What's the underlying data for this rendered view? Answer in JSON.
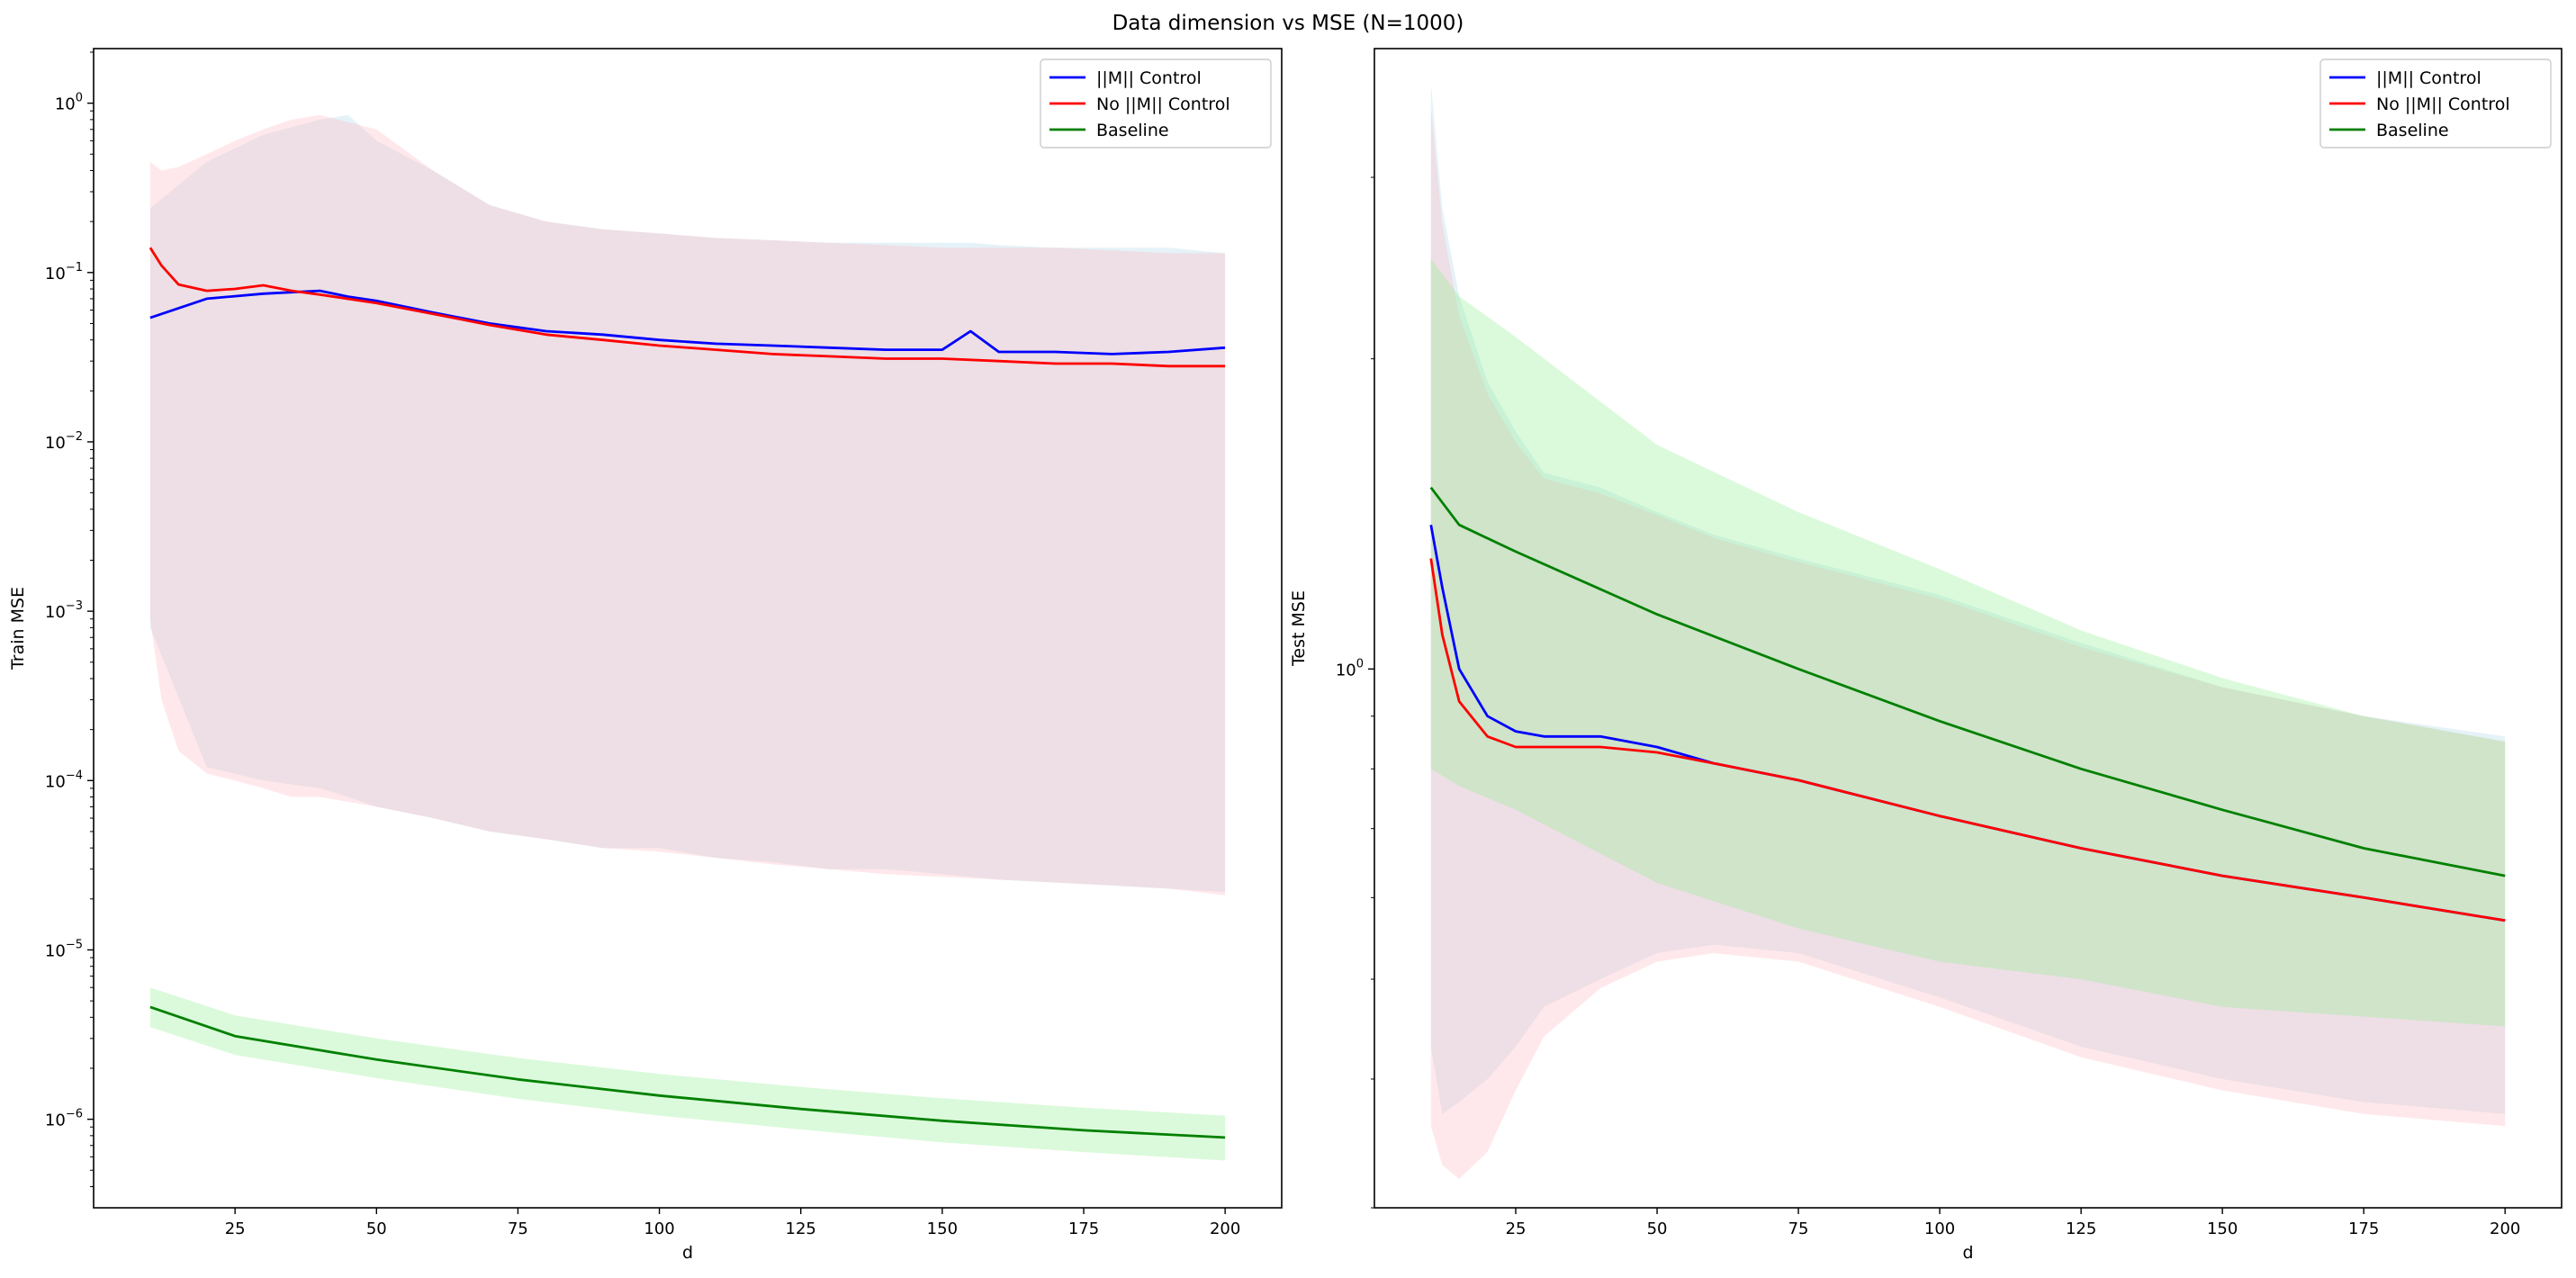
{
  "figure": {
    "title": "Data dimension vs MSE (N=1000)"
  },
  "colors": {
    "control": "#0000ff",
    "no_control": "#ff0000",
    "baseline": "#008000",
    "control_band": "#add8e6",
    "no_control_band": "#ffb6c1",
    "baseline_band": "#90ee90"
  },
  "chart_data": [
    {
      "type": "line",
      "title": "",
      "xlabel": "d",
      "ylabel": "Train MSE",
      "yscale": "log",
      "xlim": [
        0,
        210
      ],
      "ylim": [
        3e-07,
        2.1
      ],
      "xticks": [
        25,
        50,
        75,
        100,
        125,
        150,
        175,
        200
      ],
      "yticks": [
        {
          "value": 1e-06,
          "base": "10",
          "exp": "−6"
        },
        {
          "value": 1e-05,
          "base": "10",
          "exp": "−5"
        },
        {
          "value": 0.0001,
          "base": "10",
          "exp": "−4"
        },
        {
          "value": 0.001,
          "base": "10",
          "exp": "−3"
        },
        {
          "value": 0.01,
          "base": "10",
          "exp": "−2"
        },
        {
          "value": 0.1,
          "base": "10",
          "exp": "−1"
        },
        {
          "value": 1,
          "base": "10",
          "exp": "0"
        }
      ],
      "legend_position": "top-right",
      "legend": [
        "||M|| Control",
        "No ||M|| Control",
        "Baseline"
      ],
      "series": [
        {
          "name": "||M|| Control",
          "color_key": "control",
          "band_color_key": "control_band",
          "x": [
            10,
            20,
            30,
            40,
            45,
            50,
            60,
            70,
            80,
            90,
            100,
            110,
            120,
            130,
            140,
            150,
            155,
            160,
            170,
            180,
            190,
            200
          ],
          "y": [
            0.054,
            0.07,
            0.075,
            0.078,
            0.072,
            0.068,
            0.058,
            0.05,
            0.045,
            0.043,
            0.04,
            0.038,
            0.037,
            0.036,
            0.035,
            0.035,
            0.045,
            0.034,
            0.034,
            0.033,
            0.034,
            0.036
          ],
          "upper": [
            0.24,
            0.45,
            0.65,
            0.8,
            0.85,
            0.6,
            0.4,
            0.25,
            0.2,
            0.18,
            0.17,
            0.16,
            0.155,
            0.15,
            0.15,
            0.15,
            0.15,
            0.145,
            0.14,
            0.14,
            0.14,
            0.13
          ],
          "lower": [
            0.0008,
            0.00012,
            0.0001,
            9e-05,
            8e-05,
            7e-05,
            6e-05,
            5e-05,
            4.5e-05,
            4e-05,
            4e-05,
            3.5e-05,
            3.3e-05,
            3e-05,
            3e-05,
            2.8e-05,
            2.7e-05,
            2.6e-05,
            2.5e-05,
            2.4e-05,
            2.3e-05,
            2.2e-05
          ]
        },
        {
          "name": "No ||M|| Control",
          "color_key": "no_control",
          "band_color_key": "no_control_band",
          "x": [
            10,
            12,
            15,
            20,
            25,
            30,
            35,
            40,
            50,
            60,
            70,
            80,
            90,
            100,
            110,
            120,
            130,
            140,
            150,
            160,
            170,
            180,
            190,
            200
          ],
          "y": [
            0.14,
            0.11,
            0.085,
            0.078,
            0.08,
            0.084,
            0.078,
            0.074,
            0.066,
            0.057,
            0.049,
            0.043,
            0.04,
            0.037,
            0.035,
            0.033,
            0.032,
            0.031,
            0.031,
            0.03,
            0.029,
            0.029,
            0.028,
            0.028
          ],
          "upper": [
            0.45,
            0.4,
            0.42,
            0.5,
            0.6,
            0.7,
            0.8,
            0.85,
            0.7,
            0.4,
            0.25,
            0.2,
            0.18,
            0.17,
            0.16,
            0.155,
            0.15,
            0.145,
            0.14,
            0.14,
            0.14,
            0.135,
            0.13,
            0.13
          ],
          "lower": [
            0.0009,
            0.0003,
            0.00015,
            0.00011,
            0.0001,
            9e-05,
            8e-05,
            8e-05,
            7e-05,
            6e-05,
            5e-05,
            4.5e-05,
            4e-05,
            3.8e-05,
            3.5e-05,
            3.2e-05,
            3e-05,
            2.8e-05,
            2.7e-05,
            2.6e-05,
            2.5e-05,
            2.4e-05,
            2.3e-05,
            2.1e-05
          ]
        },
        {
          "name": "Baseline",
          "color_key": "baseline",
          "band_color_key": "baseline_band",
          "x": [
            10,
            25,
            50,
            75,
            100,
            125,
            150,
            175,
            200
          ],
          "y": [
            4.6e-06,
            3.1e-06,
            2.25e-06,
            1.72e-06,
            1.38e-06,
            1.15e-06,
            9.8e-07,
            8.6e-07,
            7.8e-07
          ],
          "upper": [
            6e-06,
            4.1e-06,
            3e-06,
            2.3e-06,
            1.85e-06,
            1.55e-06,
            1.33e-06,
            1.17e-06,
            1.05e-06
          ],
          "lower": [
            3.5e-06,
            2.4e-06,
            1.75e-06,
            1.32e-06,
            1.05e-06,
            8.7e-07,
            7.3e-07,
            6.4e-07,
            5.7e-07
          ]
        }
      ]
    },
    {
      "type": "line",
      "title": "",
      "xlabel": "d",
      "ylabel": "Test MSE",
      "yscale": "log",
      "xlim": [
        0,
        210
      ],
      "ylim": [
        0.3,
        4.0
      ],
      "xticks": [
        25,
        50,
        75,
        100,
        125,
        150,
        175,
        200
      ],
      "yticks": [
        {
          "value": 1,
          "base": "10",
          "exp": "0"
        }
      ],
      "legend_position": "top-right",
      "legend": [
        "||M|| Control",
        "No ||M|| Control",
        "Baseline"
      ],
      "series": [
        {
          "name": "||M|| Control",
          "color_key": "control",
          "band_color_key": "control_band",
          "x": [
            10,
            12,
            15,
            20,
            25,
            30,
            40,
            50,
            60,
            75,
            100,
            125,
            150,
            175,
            200
          ],
          "y": [
            1.38,
            1.2,
            1.0,
            0.9,
            0.87,
            0.86,
            0.86,
            0.84,
            0.81,
            0.78,
            0.72,
            0.67,
            0.63,
            0.6,
            0.57
          ],
          "upper": [
            3.7,
            2.8,
            2.3,
            1.9,
            1.7,
            1.55,
            1.5,
            1.42,
            1.35,
            1.28,
            1.18,
            1.06,
            0.96,
            0.9,
            0.86
          ],
          "lower": [
            0.43,
            0.37,
            0.38,
            0.4,
            0.43,
            0.47,
            0.5,
            0.53,
            0.54,
            0.53,
            0.48,
            0.43,
            0.4,
            0.38,
            0.37
          ]
        },
        {
          "name": "No ||M|| Control",
          "color_key": "no_control",
          "band_color_key": "no_control_band",
          "x": [
            10,
            12,
            15,
            20,
            25,
            30,
            40,
            50,
            60,
            75,
            100,
            125,
            150,
            175,
            200
          ],
          "y": [
            1.28,
            1.08,
            0.93,
            0.86,
            0.84,
            0.84,
            0.84,
            0.83,
            0.81,
            0.78,
            0.72,
            0.67,
            0.63,
            0.6,
            0.57
          ],
          "upper": [
            3.5,
            2.7,
            2.2,
            1.85,
            1.66,
            1.53,
            1.48,
            1.41,
            1.34,
            1.27,
            1.17,
            1.05,
            0.96,
            0.9,
            0.85
          ],
          "lower": [
            0.36,
            0.33,
            0.32,
            0.34,
            0.39,
            0.44,
            0.49,
            0.52,
            0.53,
            0.52,
            0.47,
            0.42,
            0.39,
            0.37,
            0.36
          ]
        },
        {
          "name": "Baseline",
          "color_key": "baseline",
          "band_color_key": "baseline_band",
          "x": [
            10,
            15,
            25,
            50,
            75,
            100,
            125,
            150,
            175,
            200
          ],
          "y": [
            1.5,
            1.38,
            1.3,
            1.13,
            1.0,
            0.89,
            0.8,
            0.73,
            0.67,
            0.63
          ],
          "upper": [
            2.5,
            2.3,
            2.1,
            1.65,
            1.42,
            1.25,
            1.09,
            0.98,
            0.9,
            0.85
          ],
          "lower": [
            0.8,
            0.77,
            0.73,
            0.62,
            0.56,
            0.52,
            0.5,
            0.47,
            0.46,
            0.45
          ]
        }
      ]
    }
  ]
}
